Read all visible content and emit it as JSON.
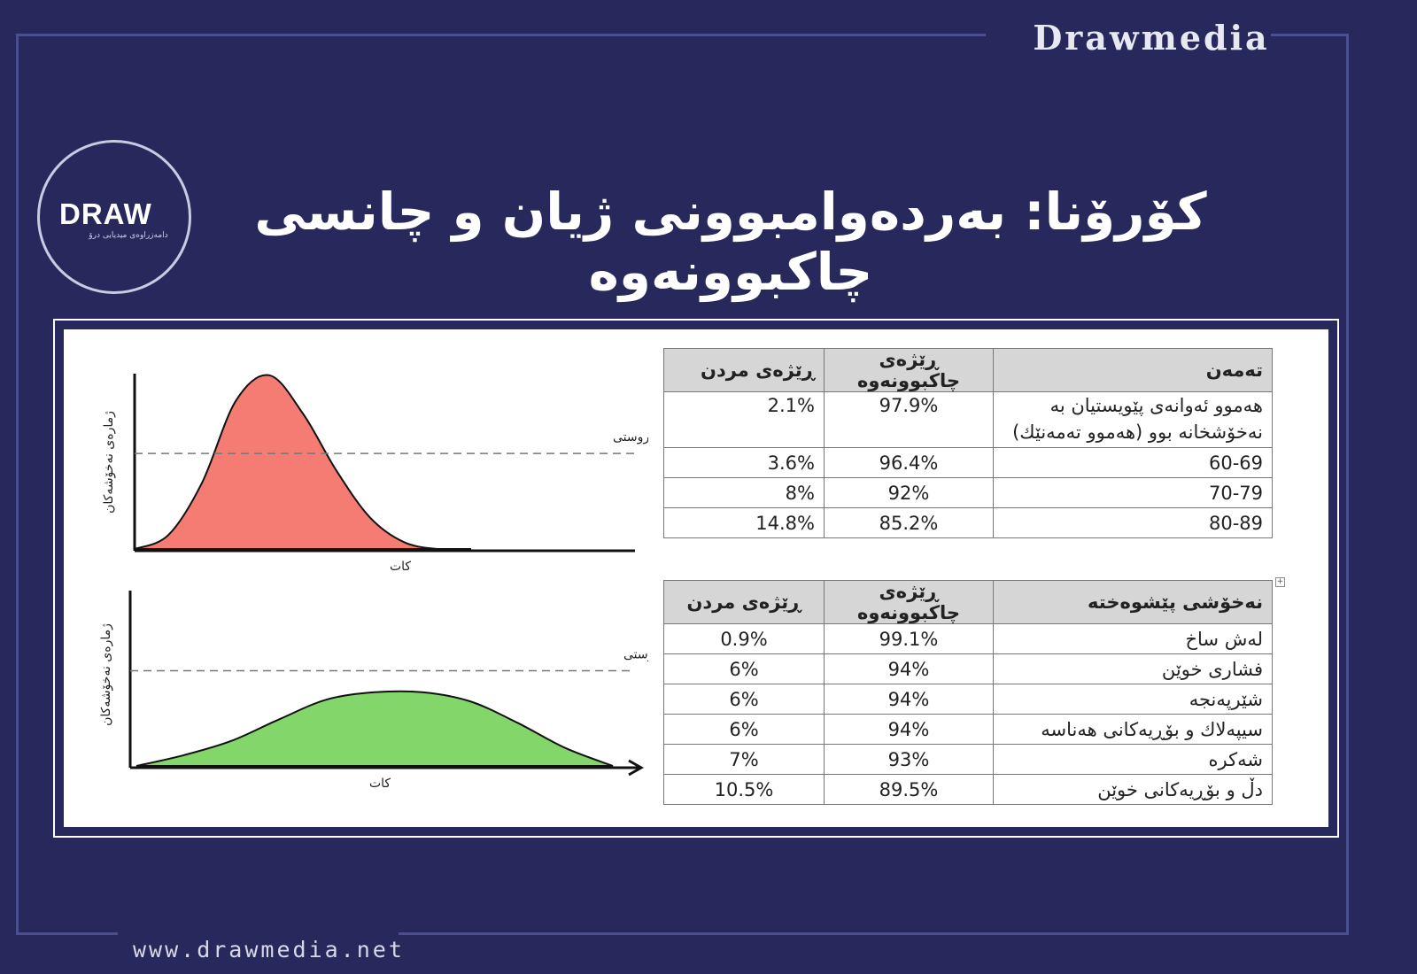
{
  "brand": "Drawmedia",
  "website": "www.drawmedia.net",
  "logo": {
    "word": "DRAW",
    "subtitle": "دامەزراوەی میدیایی درۆ"
  },
  "title": "کۆرۆنا: بەردەوامبوونی ژیان و چانسی چاکبوونەوە",
  "colors": {
    "background": "#27295c",
    "peak_curve": "#f47c72",
    "flat_curve": "#82d66a"
  },
  "chart_data": [
    {
      "type": "area",
      "xlabel": "کات",
      "ylabel": "ژمارەی نەخۆشەکان",
      "threshold_label": "ئاستی توانای سیستەمی تەندروستی",
      "x": [
        0,
        1,
        2,
        3,
        4,
        5,
        6,
        7,
        8,
        9,
        10
      ],
      "values": [
        0,
        8,
        38,
        85,
        100,
        78,
        45,
        18,
        4,
        0,
        0
      ],
      "threshold": 55,
      "ylim": [
        0,
        105
      ],
      "fill": "#f47c72"
    },
    {
      "type": "area",
      "xlabel": "کات",
      "ylabel": "ژمارەی نەخۆشەکان",
      "threshold_label": "ئاستی توانای سیستەمی تەندروستی",
      "x": [
        0,
        1,
        2,
        3,
        4,
        5,
        6,
        7,
        8,
        9,
        10
      ],
      "values": [
        0,
        6,
        14,
        26,
        37,
        41,
        41,
        36,
        24,
        10,
        0
      ],
      "threshold": 53,
      "ylim": [
        0,
        105
      ],
      "fill": "#82d66a"
    }
  ],
  "table_age": {
    "headers": [
      "تەمەن",
      "ڕێژەی چاکبوونەوە",
      "ڕێژەی مردن"
    ],
    "rows": [
      [
        "هەموو ئەوانەی پێویستیان بە نەخۆشخانە بوو  (هەموو تەمەنێك)",
        "97.9%",
        "2.1%"
      ],
      [
        "60-69",
        "96.4%",
        "3.6%"
      ],
      [
        "70-79",
        "92%",
        "8%"
      ],
      [
        "80-89",
        "85.2%",
        "14.8%"
      ]
    ]
  },
  "table_condition": {
    "headers": [
      "نەخۆشی پێشوەختە",
      "ڕێژەی چاکبوونەوە",
      "ڕێژەی مردن"
    ],
    "rows": [
      [
        "لەش ساخ",
        "99.1%",
        "0.9%"
      ],
      [
        "فشاری خوێن",
        "94%",
        "6%"
      ],
      [
        "شێرپەنجە",
        "94%",
        "6%"
      ],
      [
        "سیپەلاك و بۆڕیەکانی هەناسە",
        "94%",
        "6%"
      ],
      [
        "شەکرە",
        "93%",
        "7%"
      ],
      [
        "دڵ و بۆڕیەکانی خوێن",
        "89.5%",
        "10.5%"
      ]
    ]
  }
}
